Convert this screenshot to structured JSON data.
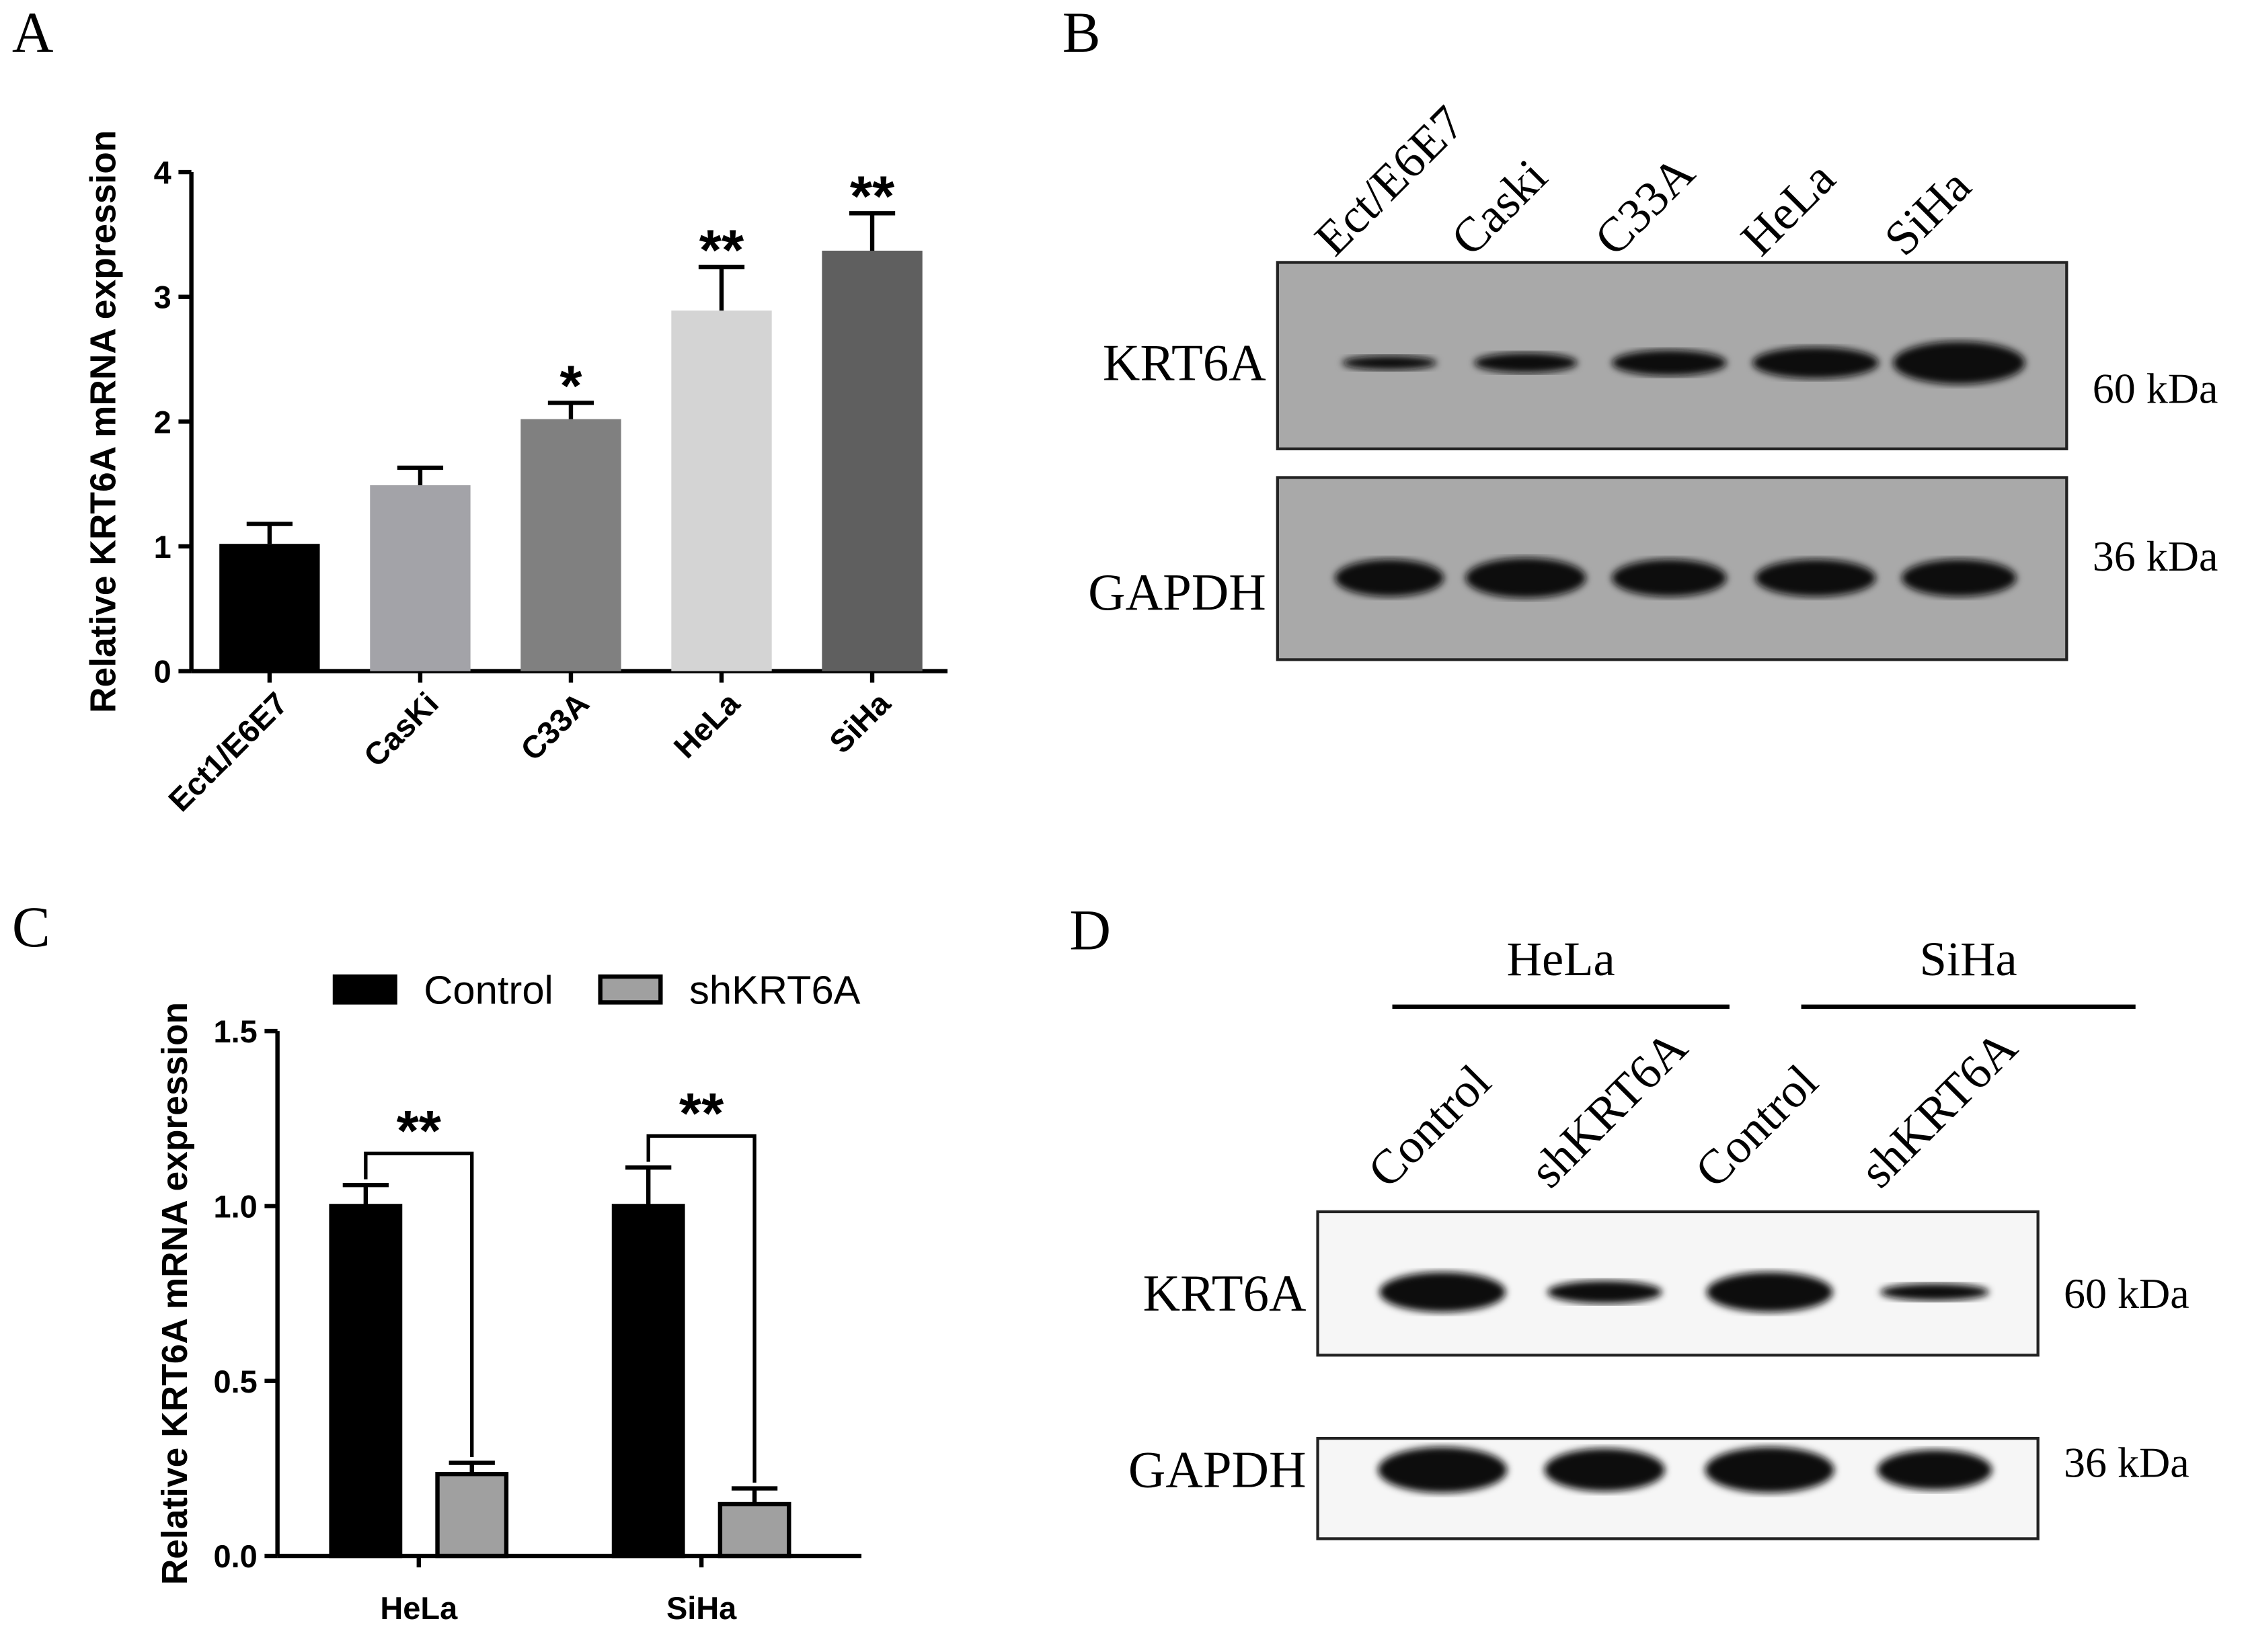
{
  "chart_data": [
    {
      "type": "bar",
      "panel": "A",
      "y_label": "Relative KRT6A mRNA expression",
      "categories": [
        "Ect1/E6E7",
        "CasKi",
        "C33A",
        "HeLa",
        "SiHa"
      ],
      "values": [
        1.02,
        1.49,
        2.02,
        2.89,
        3.37
      ],
      "errors": [
        0.16,
        0.14,
        0.13,
        0.35,
        0.3
      ],
      "colors": [
        "#000000",
        "#a3a3a8",
        "#808080",
        "#d4d4d4",
        "#5f5f5f"
      ],
      "significance": [
        null,
        null,
        "*",
        "**",
        "**"
      ],
      "ylim": [
        0,
        4
      ],
      "yticks": [
        0,
        1,
        2,
        3,
        4
      ]
    },
    {
      "type": "bar",
      "panel": "C",
      "y_label": "Relative KRT6A mRNA expression",
      "categories": [
        "HeLa",
        "SiHa"
      ],
      "series": [
        {
          "name": "Control",
          "color": "#000000",
          "values": [
            1,
            1
          ],
          "errors": [
            0.06,
            0.11
          ]
        },
        {
          "name": "shKRT6A",
          "color": "#a0a0a0",
          "values": [
            0.234,
            0.148
          ],
          "errors": [
            0.032,
            0.045
          ]
        }
      ],
      "significance": [
        "**",
        "**"
      ],
      "ylim": [
        0,
        1.5
      ],
      "yticks": [
        {
          "value": 0,
          "label": "0.0"
        },
        0.5,
        {
          "value": 1,
          "label": "1.0"
        },
        1.5
      ]
    }
  ],
  "blots": [
    {
      "panel": "B",
      "lanes": [
        "Ect/E6E7",
        "Caski",
        "C33A",
        "HeLa",
        "SiHa"
      ],
      "rows": [
        {
          "label": "KRT6A",
          "size": "60 kDa"
        },
        {
          "label": "GAPDH",
          "size": "36 kDa"
        }
      ]
    },
    {
      "panel": "D",
      "groups": [
        "HeLa",
        "SiHa"
      ],
      "lanes": [
        "Control",
        "shKRT6A",
        "Control",
        "shKRT6A"
      ],
      "rows": [
        {
          "label": "KRT6A",
          "size": "60 kDa"
        },
        {
          "label": "GAPDH",
          "size": "36 kDa"
        }
      ]
    }
  ]
}
